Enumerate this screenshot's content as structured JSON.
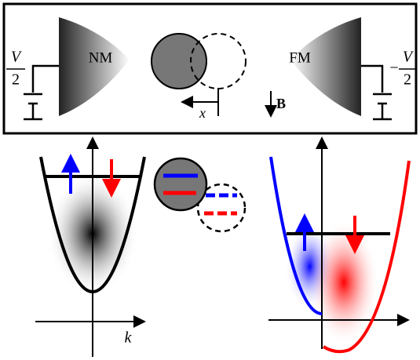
{
  "leads": {
    "left": "NM",
    "right": "FM"
  },
  "bias": {
    "left": {
      "numerator": "V",
      "denominator": "2"
    },
    "right": {
      "sign": "−",
      "numerator": "V",
      "denominator": "2"
    }
  },
  "displacement": "x",
  "field": "B",
  "momentum_axis": "k"
}
